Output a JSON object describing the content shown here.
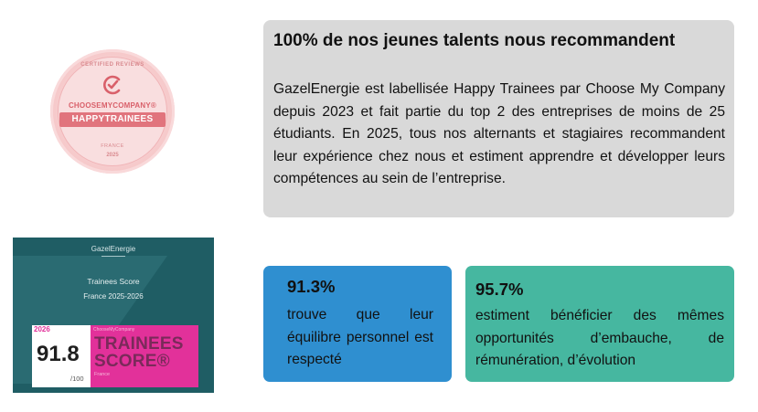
{
  "badge": {
    "arc_text": "CERTIFIED REVIEWS",
    "brand": "CHOOSEMYCOMPANY®",
    "label": "HAPPYTRAINEES",
    "country": "FRANCE",
    "year": "2025",
    "colors": {
      "pink": "#e1747d",
      "light": "#f9dedf"
    },
    "icon": "checkmark-c-icon"
  },
  "intro": {
    "title": "100% de nos jeunes talents nous recommandent",
    "text": "GazelEnergie est labellisée Happy Trainees par Choose My Company depuis 2023 et fait partie du top 2 des entreprises de moins de 25 étudiants. En 2025, tous nos alternants et stagiaires recommandent leur expérience chez nous et estiment apprendre et développer leurs compétences au sein de l’entreprise."
  },
  "score_card": {
    "company": "GazelEnergie",
    "label": "Trainees Score",
    "period": "France 2025-2026",
    "year": "2026",
    "score": "91.8",
    "max": "/100",
    "kicker": "ChooseMyCompany",
    "brand_line1": "TRAINEES",
    "brand_line2": "SCORE®",
    "country": "France",
    "colors": {
      "teal": "#1f5d64",
      "magenta": "#e2319a"
    }
  },
  "stats": [
    {
      "value": "91.3%",
      "text": "trouve que leur équilibre personnel est respecté",
      "color": "#2f8fd0"
    },
    {
      "value": "95.7%",
      "text": "estiment bénéficier des mêmes opportunités d’embauche, de rémunération, d’évolution",
      "color": "#46b7a0"
    }
  ]
}
